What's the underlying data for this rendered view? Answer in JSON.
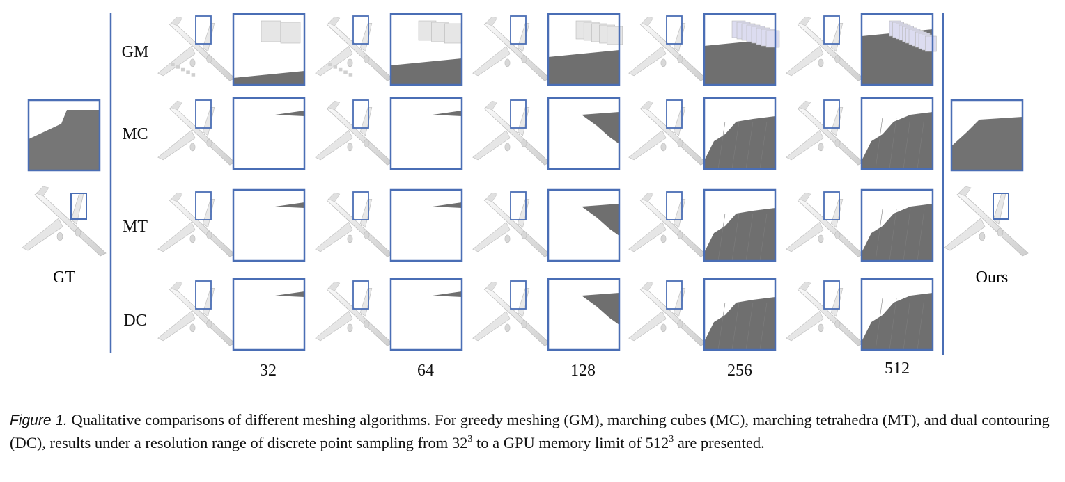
{
  "figure": {
    "row_labels": [
      "GM",
      "MC",
      "MT",
      "DC"
    ],
    "resolutions": [
      "32",
      "64",
      "128",
      "256",
      "512"
    ],
    "gt_label": "GT",
    "ours_label": "Ours",
    "colors": {
      "frame": "#4a6eb5",
      "separator": "#4a6eb5",
      "mesh_dark": "#6f6f6f",
      "mesh_light": "#e2e2e2",
      "plane_stroke": "#bdbdbd"
    }
  },
  "caption": {
    "label": "Figure 1.",
    "part1": " Qualitative comparisons of different meshing algorithms. For greedy meshing (GM), marching cubes (MC), marching tetrahedra (MT), and dual contouring (DC), results under a resolution range of discrete point sampling from ",
    "base1": "32",
    "exp1": "3",
    "part2": " to a GPU memory limit of ",
    "base2": "512",
    "exp2": "3",
    "part3": " are presented."
  }
}
